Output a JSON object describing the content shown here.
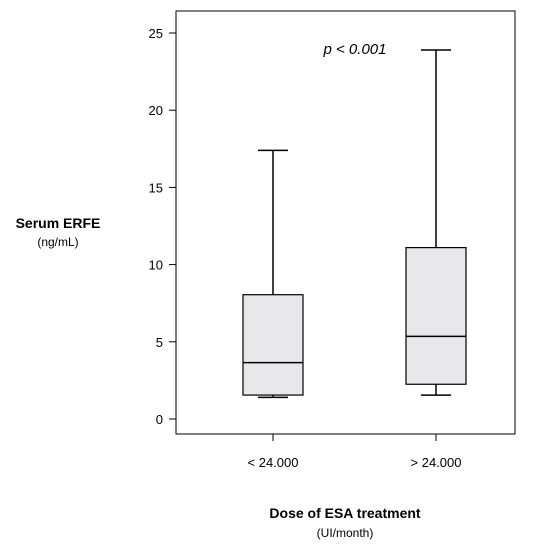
{
  "chart_data": {
    "type": "box",
    "y_axis": {
      "label": "Serum ERFE",
      "unit": "(ng/mL)",
      "range": [
        0,
        25
      ],
      "ticks": [
        "0",
        "5",
        "10",
        "15",
        "20",
        "25"
      ]
    },
    "x_axis": {
      "label": "Dose of ESA treatment",
      "unit": "(UI/month)",
      "categories": [
        "< 24.000",
        "> 24.000"
      ]
    },
    "annotation": "p < 0.001",
    "boxes": [
      {
        "category": "< 24.000",
        "min": 1.4,
        "q1": 1.55,
        "median": 3.65,
        "q3": 8.05,
        "max": 17.4
      },
      {
        "category": "> 24.000",
        "min": 1.55,
        "q1": 2.25,
        "median": 5.35,
        "q3": 11.1,
        "max": 23.9
      }
    ],
    "box_fill": "#e8e8ea",
    "grid": false
  }
}
